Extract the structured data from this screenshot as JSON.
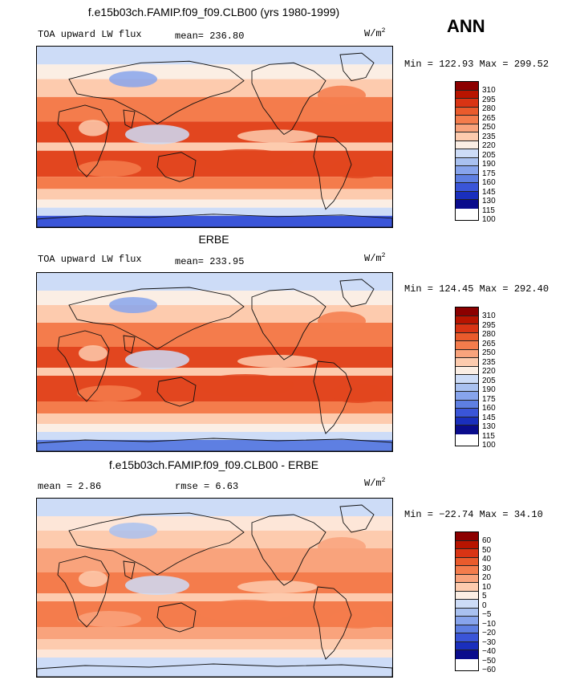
{
  "season": "ANN",
  "panels": [
    {
      "title": "f.e15b03ch.FAMIP.f09_f09.CLB00 (yrs 1980-1999)",
      "variable": "TOA upward LW flux",
      "stat1": "mean= 236.80",
      "stat2": "",
      "units": "W/m",
      "units_sup": "2",
      "minmax": "Min = 122.93 Max = 299.52",
      "levels": [
        "310",
        "295",
        "280",
        "265",
        "250",
        "235",
        "220",
        "205",
        "190",
        "175",
        "160",
        "145",
        "130",
        "115",
        "100"
      ],
      "colors": [
        "#8c0000",
        "#b81400",
        "#d93414",
        "#ea5b2c",
        "#f47c4c",
        "#f9a37c",
        "#fdcbae",
        "#fbeee4",
        "#cddcf7",
        "#a9c1f0",
        "#87a4ec",
        "#5e7fe2",
        "#3a55d8",
        "#1a2fbd",
        "#0a0c8c"
      ],
      "map_colors": {
        "hot": "#e2461f",
        "warm": "#f47c4c",
        "mild": "#fdcbae",
        "neutral": "#fbeee4",
        "cool": "#cddcf7",
        "cold": "#87a4ec",
        "coldest": "#3a55d8"
      }
    },
    {
      "title": "ERBE",
      "variable": "TOA upward LW flux",
      "stat1": "mean= 233.95",
      "stat2": "",
      "units": "W/m",
      "units_sup": "2",
      "minmax": "Min = 124.45 Max = 292.40",
      "levels": [
        "310",
        "295",
        "280",
        "265",
        "250",
        "235",
        "220",
        "205",
        "190",
        "175",
        "160",
        "145",
        "130",
        "115",
        "100"
      ],
      "colors": [
        "#8c0000",
        "#b81400",
        "#d93414",
        "#ea5b2c",
        "#f47c4c",
        "#f9a37c",
        "#fdcbae",
        "#fbeee4",
        "#cddcf7",
        "#a9c1f0",
        "#87a4ec",
        "#5e7fe2",
        "#3a55d8",
        "#1a2fbd",
        "#0a0c8c"
      ],
      "map_colors": {
        "hot": "#e2461f",
        "warm": "#f47c4c",
        "mild": "#fdcbae",
        "neutral": "#fbeee4",
        "cool": "#cddcf7",
        "cold": "#87a4ec",
        "coldest": "#5e7fe2"
      }
    },
    {
      "title": "f.e15b03ch.FAMIP.f09_f09.CLB00 - ERBE",
      "variable": "",
      "stat1": "mean =    2.86",
      "stat2": "rmse =    6.63",
      "units": "W/m",
      "units_sup": "2",
      "minmax": "Min = −22.74 Max =  34.10",
      "levels": [
        "60",
        "50",
        "40",
        "30",
        "20",
        "10",
        "5",
        "0",
        "−5",
        "−10",
        "−20",
        "−30",
        "−40",
        "−50",
        "−60"
      ],
      "colors": [
        "#8c0000",
        "#b81400",
        "#d93414",
        "#ea5b2c",
        "#f47c4c",
        "#f9a37c",
        "#fdcbae",
        "#fbeee4",
        "#cddcf7",
        "#a9c1f0",
        "#87a4ec",
        "#5e7fe2",
        "#3a55d8",
        "#1a2fbd",
        "#0a0c8c"
      ],
      "map_colors": {
        "hot": "#f47c4c",
        "warm": "#f9a37c",
        "mild": "#fdcbae",
        "neutral": "#fde6d8",
        "cool": "#cddcf7",
        "cold": "#a9c1f0",
        "coldest": "#cddcf7"
      }
    }
  ]
}
